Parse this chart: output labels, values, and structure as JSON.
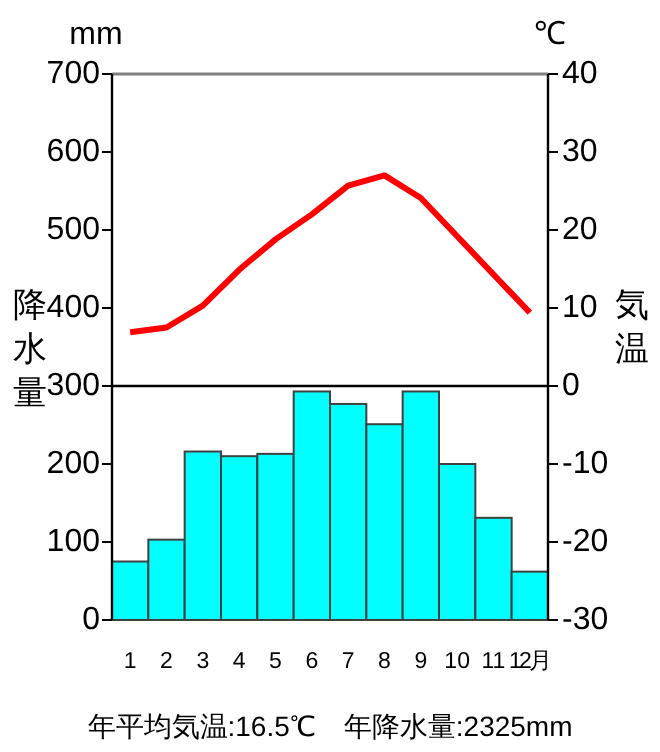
{
  "chart_data": {
    "type": "bar",
    "categories": [
      "1",
      "2",
      "3",
      "4",
      "5",
      "6",
      "7",
      "8",
      "9",
      "10",
      "11",
      "12月"
    ],
    "ylabel": "降水量",
    "y2label": "気温",
    "series": [
      {
        "color": "#00ffff",
        "values": [
          75,
          103,
          216,
          210,
          213,
          293,
          277,
          251,
          293,
          200,
          131,
          62
        ]
      },
      {
        "type": "line",
        "axis": "y2",
        "color": "#ff0000",
        "values": [
          6.9,
          7.5,
          10.3,
          14.9,
          18.8,
          22.0,
          25.7,
          27.0,
          24.1,
          19.2,
          14.3,
          9.4
        ]
      }
    ],
    "ylim": [
      0,
      700
    ],
    "yticks": [
      0,
      100,
      200,
      300,
      400,
      500,
      600,
      700
    ],
    "y2lim": [
      -30,
      40
    ],
    "y2ticks": [
      -30,
      -20,
      -10,
      0,
      10,
      20,
      30,
      40
    ],
    "ref_lines": [
      {
        "axis": "y2",
        "value": 0,
        "color": "#000000"
      }
    ],
    "annotations": [
      "mm",
      "℃",
      "年平均気温:16.5℃　年降水量:2325mm"
    ]
  }
}
